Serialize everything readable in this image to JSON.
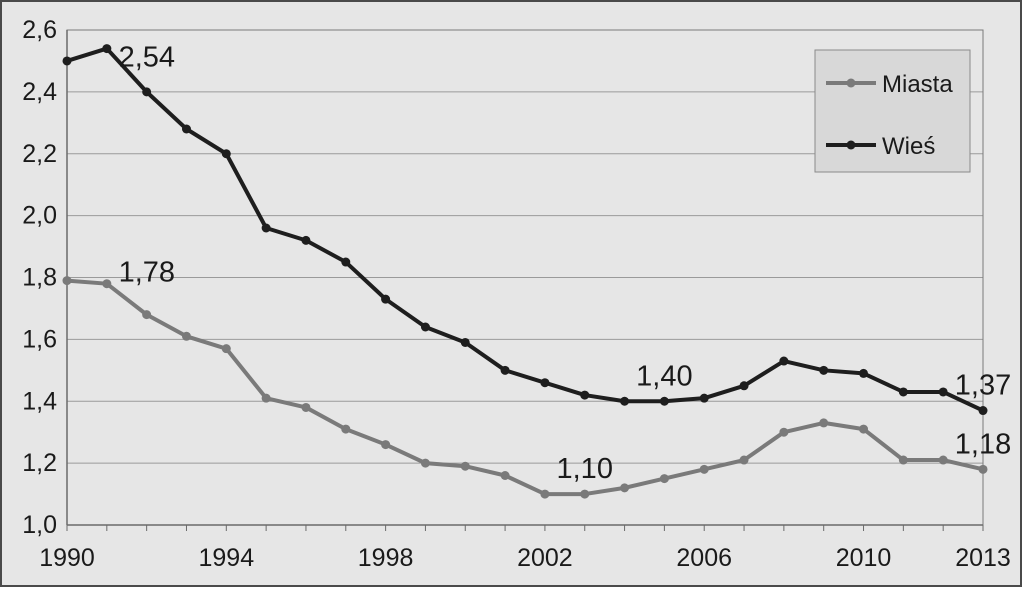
{
  "chart_data": {
    "type": "line",
    "title": "",
    "xlabel": "",
    "ylabel": "",
    "xlim": [
      1990,
      2013
    ],
    "ylim": [
      1.0,
      2.6
    ],
    "grid": true,
    "legend_position": "top-right",
    "x_ticks": [
      "1990",
      "1994",
      "1998",
      "2002",
      "2006",
      "2010",
      "2013"
    ],
    "y_ticks": [
      "1,0",
      "1,2",
      "1,4",
      "1,6",
      "1,8",
      "2,0",
      "2,2",
      "2,4",
      "2,6"
    ],
    "x": [
      1990,
      1991,
      1992,
      1993,
      1994,
      1995,
      1996,
      1997,
      1998,
      1999,
      2000,
      2001,
      2002,
      2003,
      2004,
      2005,
      2006,
      2007,
      2008,
      2009,
      2010,
      2011,
      2012,
      2013
    ],
    "series": [
      {
        "name": "Miasta",
        "color": "#7a7a7a",
        "values": [
          1.79,
          1.78,
          1.68,
          1.61,
          1.57,
          1.41,
          1.38,
          1.31,
          1.26,
          1.2,
          1.19,
          1.16,
          1.1,
          1.1,
          1.12,
          1.15,
          1.18,
          1.21,
          1.3,
          1.33,
          1.31,
          1.21,
          1.21,
          1.18
        ]
      },
      {
        "name": "Wieś",
        "color": "#1e1e1e",
        "values": [
          2.5,
          2.54,
          2.4,
          2.28,
          2.2,
          1.96,
          1.92,
          1.85,
          1.73,
          1.64,
          1.59,
          1.5,
          1.46,
          1.42,
          1.4,
          1.4,
          1.41,
          1.45,
          1.53,
          1.5,
          1.49,
          1.43,
          1.43,
          1.37
        ]
      }
    ],
    "annotations": [
      {
        "text": "2,54",
        "x": 1991,
        "y": 2.54
      },
      {
        "text": "1,78",
        "x": 1991,
        "y": 1.78
      },
      {
        "text": "1,10",
        "x": 2003,
        "y": 1.1
      },
      {
        "text": "1,40",
        "x": 2005,
        "y": 1.4
      },
      {
        "text": "1,37",
        "x": 2013,
        "y": 1.37
      },
      {
        "text": "1,18",
        "x": 2013,
        "y": 1.18
      }
    ]
  }
}
